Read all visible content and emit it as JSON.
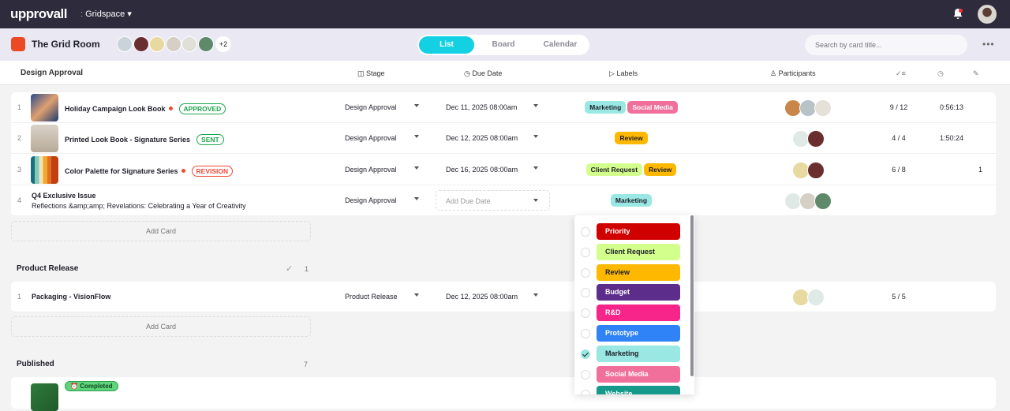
{
  "app": {
    "logo": "upprovall",
    "workspace": "Gridspace"
  },
  "room": {
    "title": "The Grid Room",
    "extra_members": "+2",
    "avatar_colors": [
      "#c9d3d8",
      "#6b2e2e",
      "#e8d9a0",
      "#d6cfc6",
      "#e0e0d8",
      "#5e8a6a"
    ]
  },
  "views": {
    "tabs": [
      {
        "label": "List",
        "active": true
      },
      {
        "label": "Board",
        "active": false
      },
      {
        "label": "Calendar",
        "active": false
      }
    ]
  },
  "search": {
    "placeholder": "Search by card title..."
  },
  "columns": {
    "group": "Design Approval",
    "stage": "Stage",
    "due": "Due Date",
    "labels": "Labels",
    "participants": "Participants"
  },
  "label_colors": {
    "Marketing": [
      "#9ae8e3",
      "#1d1d28"
    ],
    "Social Media": [
      "#f0709b",
      "#fff"
    ],
    "Review": [
      "#ffb800",
      "#1d1d28"
    ],
    "Client Request": [
      "#d3ff8c",
      "#1d1d28"
    ],
    "Priority": [
      "#d10000",
      "#fff"
    ],
    "Budget": [
      "#5d2d8c",
      "#fff"
    ],
    "R&D": [
      "#f7248a",
      "#fff"
    ],
    "Prototype": [
      "#2f83f7",
      "#fff"
    ],
    "Website": [
      "#16998a",
      "#fff"
    ]
  },
  "groups": [
    {
      "name": "Design Approval",
      "cards": [
        {
          "num": "1",
          "title": "Holiday Campaign Look Book",
          "dot": true,
          "badge": "APPROVED",
          "badge_color": "#1fa64a",
          "thumb": "linear-gradient(135deg,#2b4c8c,#e0a070,#1e3a70)",
          "stage": "Design Approval",
          "due": "Dec 11, 2025 08:00am",
          "labels": [
            "Marketing",
            "Social Media"
          ],
          "participants": [
            "#c9864a",
            "#b7c3c7",
            "#e5e0d8"
          ],
          "checklist": "9 / 12",
          "time": "0:56:13"
        },
        {
          "num": "2",
          "title": "Printed Look Book - Signature Series",
          "dot": false,
          "badge": "SENT",
          "badge_color": "#1fa64a",
          "thumb": "linear-gradient(180deg,#d9d3c8,#b8aa98)",
          "stage": "Design Approval",
          "due": "Dec 12, 2025 08:00am",
          "labels": [
            "Review"
          ],
          "participants": [
            "#dfe9e6",
            "#6b2e2e"
          ],
          "checklist": "4 / 4",
          "time": "1:50:24"
        },
        {
          "num": "3",
          "title": "Color Palette for Signature Series",
          "dot": true,
          "badge": "REVISION",
          "badge_color": "#f04a3a",
          "thumb": "linear-gradient(90deg,#1b6e7a 0 15%,#7fc9c0 15% 30%,#f2e2b8 30% 45%,#f0a830 45% 60%,#e07020 60% 75%,#c04010 75% 100%)",
          "stage": "Design Approval",
          "due": "Dec 16, 2025 08:00am",
          "labels": [
            "Client Request",
            "Review"
          ],
          "participants": [
            "#e8d9a0",
            "#6b2e2e"
          ],
          "checklist": "6 / 8",
          "count": "1"
        },
        {
          "num": "4",
          "title": "Q4 Exclusive Issue",
          "subtitle": "Reflections &amp;amp; Revelations: Celebrating a Year of Creativity",
          "stage": "Design Approval",
          "due_placeholder": "Add Due Date",
          "labels": [
            "Marketing"
          ],
          "participants": [
            "#dfe9e6",
            "#d6cfc6",
            "#5e8a6a"
          ]
        }
      ]
    },
    {
      "name": "Product Release",
      "count": "1",
      "cards": [
        {
          "num": "1",
          "title": "Packaging - VisionFlow",
          "stage": "Product Release",
          "due": "Dec 12, 2025 08:00am",
          "labels": [],
          "participants": [
            "#e8d9a0",
            "#dfe9e6"
          ],
          "checklist": "5 / 5"
        }
      ]
    },
    {
      "name": "Published",
      "count": "7",
      "cards": [
        {
          "badge": "Completed"
        }
      ]
    }
  ],
  "add_card": "Add Card",
  "label_dropdown": [
    {
      "label": "Priority",
      "checked": false
    },
    {
      "label": "Client Request",
      "checked": false
    },
    {
      "label": "Review",
      "checked": false
    },
    {
      "label": "Budget",
      "checked": false
    },
    {
      "label": "R&D",
      "checked": false
    },
    {
      "label": "Prototype",
      "checked": false
    },
    {
      "label": "Marketing",
      "checked": true
    },
    {
      "label": "Social Media",
      "checked": false
    },
    {
      "label": "Website",
      "checked": false
    }
  ]
}
